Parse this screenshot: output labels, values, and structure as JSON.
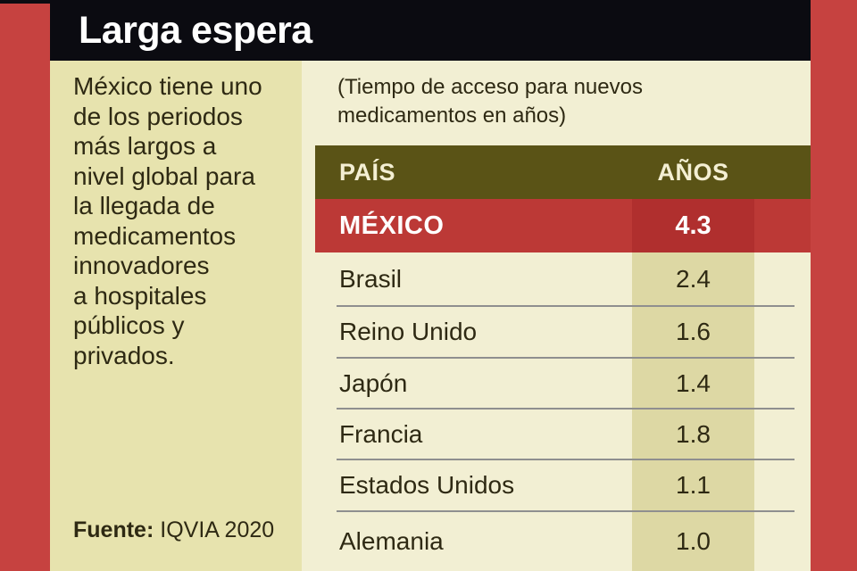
{
  "header": {
    "title": "Larga espera"
  },
  "sidebar": {
    "description": "México tiene uno\nde los periodos\nmás largos a\nnivel global para\nla llegada de\nmedicamentos\ninnovadores\na hospitales\npúblicos y\nprivados.",
    "source_label": "Fuente:",
    "source_value": "IQVIA 2020"
  },
  "content": {
    "subtitle": "(Tiempo de acceso para nuevos\nmedicamentos en años)"
  },
  "table": {
    "col_country": "PAÍS",
    "col_years": "AÑOS",
    "highlight": {
      "country": "MÉXICO",
      "value": "4.3"
    },
    "rows": [
      {
        "country": "Brasil",
        "value": "2.4"
      },
      {
        "country": "Reino Unido",
        "value": "1.6"
      },
      {
        "country": "Japón",
        "value": "1.4"
      },
      {
        "country": "Francia",
        "value": "1.8"
      },
      {
        "country": "Estados Unidos",
        "value": "1.1"
      },
      {
        "country": "Alemania",
        "value": "1.0"
      }
    ]
  },
  "chart_data": {
    "type": "table",
    "title": "Larga espera",
    "subtitle": "(Tiempo de acceso para nuevos medicamentos en años)",
    "columns": [
      "PAÍS",
      "AÑOS"
    ],
    "categories": [
      "MÉXICO",
      "Brasil",
      "Reino Unido",
      "Japón",
      "Francia",
      "Estados Unidos",
      "Alemania"
    ],
    "values": [
      4.3,
      2.4,
      1.6,
      1.4,
      1.8,
      1.1,
      1.0
    ],
    "unit": "años",
    "highlight": "MÉXICO",
    "source": "Fuente: IQVIA 2020"
  },
  "colors": {
    "accent_red": "#C64240",
    "row_red": "#BC3936",
    "cell_red": "#B02F2E",
    "olive": "#5A5316",
    "sidebar_beige": "#E7E3AE",
    "content_cream": "#F2EFD3",
    "band_khaki": "#DDD8A4",
    "header_black": "#0B0B11",
    "text_dark": "#2E2913",
    "divider_gray": "#8F8F8F"
  }
}
